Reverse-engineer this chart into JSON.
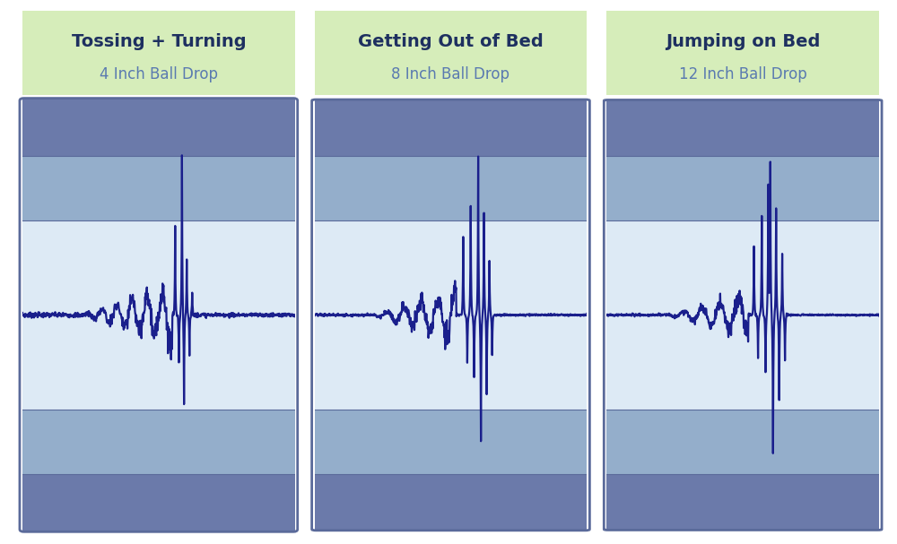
{
  "background_color": "#ffffff",
  "title_boxes": [
    {
      "title": "Tossing + Turning",
      "subtitle": "4 Inch Ball Drop"
    },
    {
      "title": "Getting Out of Bed",
      "subtitle": "8 Inch Ball Drop"
    },
    {
      "title": "Jumping on Bed",
      "subtitle": "12 Inch Ball Drop"
    }
  ],
  "title_box_bg": "#d6edba",
  "title_color": "#1e3060",
  "subtitle_color": "#5a7ab0",
  "title_fontsize": 14,
  "subtitle_fontsize": 12,
  "panel_band_colors": [
    "#6b7aaa",
    "#94aecb",
    "#ddeaf5",
    "#94aecb",
    "#6b7aaa"
  ],
  "panel_border_color": "#5a6a9a",
  "seismo_color": "#1a1f8c",
  "seismo_linewidth": 1.6
}
